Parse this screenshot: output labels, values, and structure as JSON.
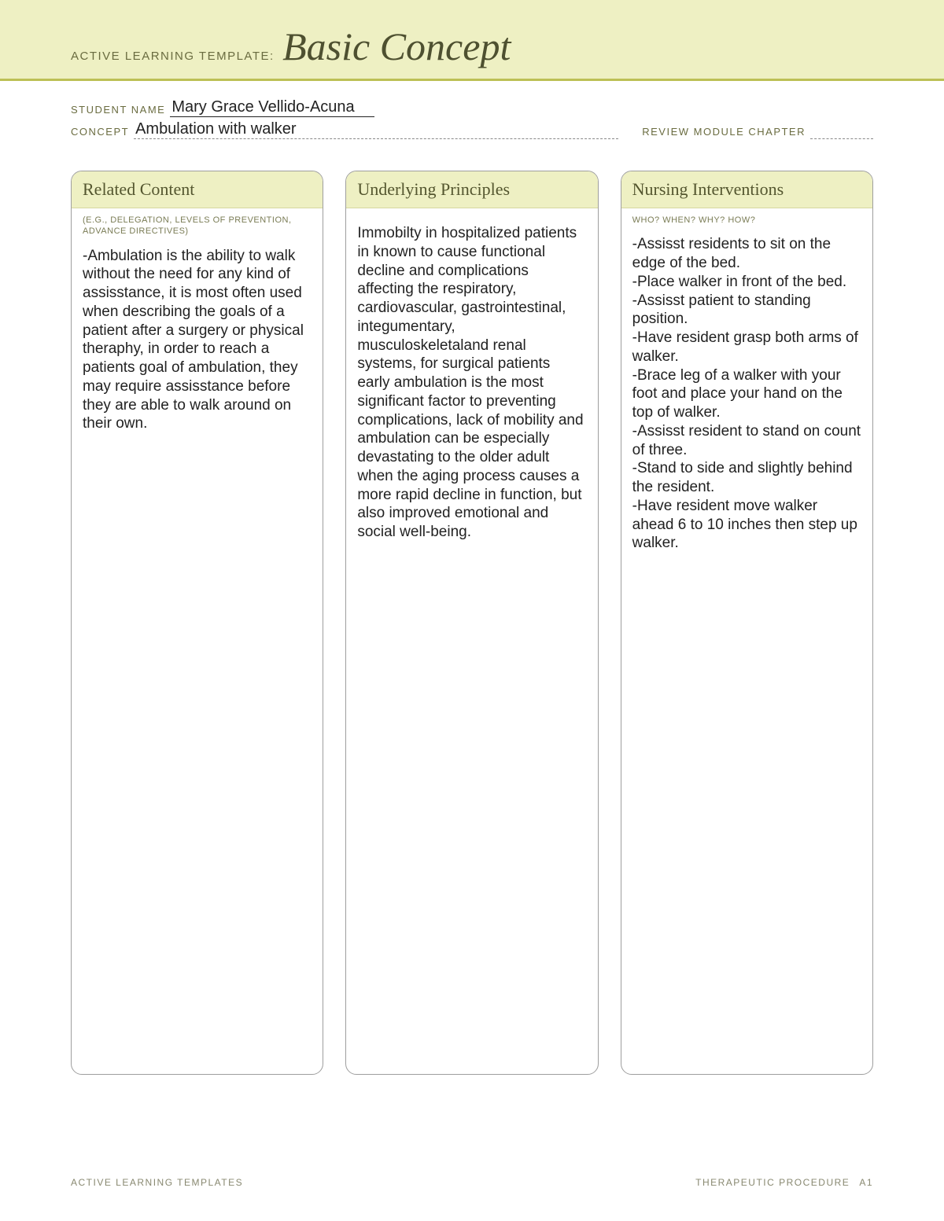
{
  "header": {
    "label": "ACTIVE LEARNING TEMPLATE:",
    "title": "Basic Concept"
  },
  "meta": {
    "student_label": "STUDENT NAME",
    "student_value": "Mary Grace Vellido-Acuna",
    "concept_label": "CONCEPT",
    "concept_value": "Ambulation with walker",
    "review_label": "REVIEW MODULE CHAPTER",
    "review_value": ""
  },
  "columns": [
    {
      "heading": "Related Content",
      "subheading": "(E.G., DELEGATION,\nLEVELS OF PREVENTION,\nADVANCE DIRECTIVES)",
      "body": "-Ambulation is the ability to walk without the need for any kind of assisstance, it is most often used when describing the goals of a patient after a surgery or physical theraphy, in order to reach a patients goal of ambulation, they may require assisstance before they are able to walk around on their own."
    },
    {
      "heading": "Underlying Principles",
      "subheading": " ",
      "body": "Immobilty in hospitalized patients in known to cause functional decline and complications affecting the respiratory, cardiovascular, gastrointestinal, integumentary, musculoskeletaland renal systems, for surgical patients early ambulation is the most significant factor to preventing complications, lack of mobility and ambulation can be especially devastating to the older adult when the aging process causes a more rapid decline in function, but also improved emotional and social well-being."
    },
    {
      "heading": "Nursing Interventions",
      "subheading": "WHO? WHEN? WHY? HOW?",
      "body": "-Assisst residents to sit on the edge of the bed.\n-Place walker in front of the bed.\n-Assisst patient to standing position.\n-Have resident grasp both arms of walker.\n-Brace leg of a walker with your foot and place your hand on the top of walker.\n-Assisst resident to stand on count of three.\n-Stand to side and slightly behind the resident.\n-Have resident move walker ahead 6 to 10 inches then step up walker."
    }
  ],
  "footer": {
    "left": "ACTIVE LEARNING TEMPLATES",
    "right_label": "THERAPEUTIC PROCEDURE",
    "right_code": "A1"
  },
  "colors": {
    "band_bg": "#eef0c3",
    "band_border": "#bcc055",
    "heading_text": "#54562f",
    "label_text": "#6a6c40",
    "box_border": "#9e9e9e"
  }
}
